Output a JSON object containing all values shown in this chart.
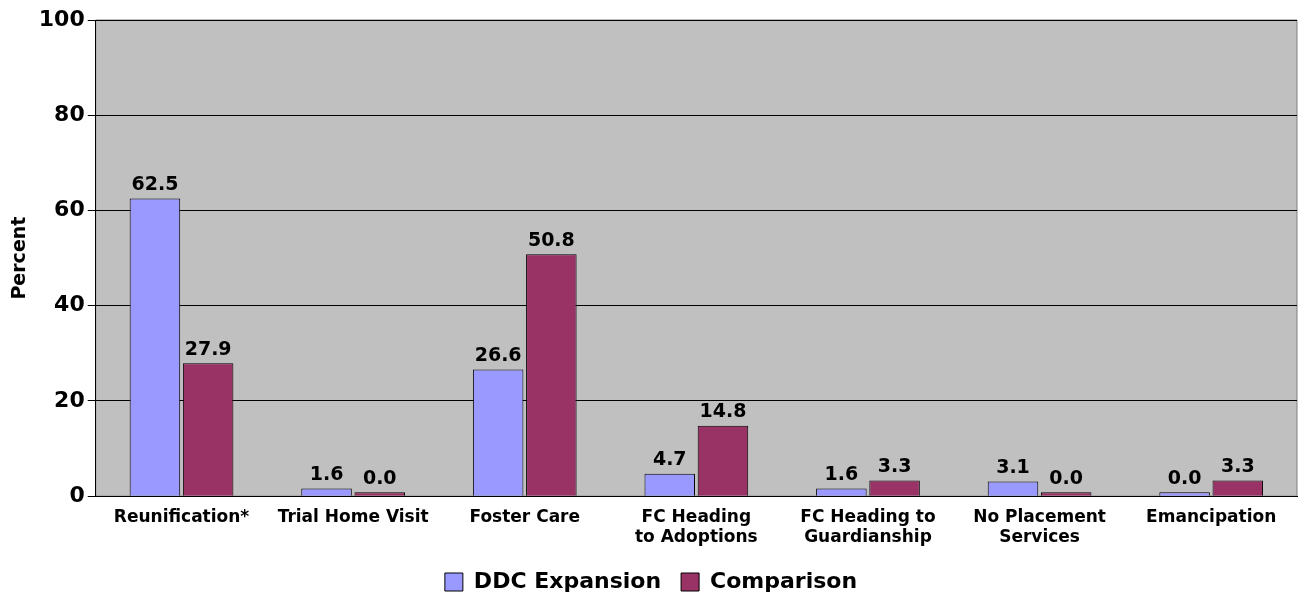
{
  "chart_data": {
    "type": "bar",
    "ylabel": "Percent",
    "categories": [
      "Reunification*",
      "Trial Home Visit",
      "Foster Care",
      "FC Heading to Adoptions",
      "FC Heading to Guardianship",
      "No Placement Services",
      "Emancipation"
    ],
    "series": [
      {
        "name": "DDC Expansion",
        "color": "#9999ff",
        "values": [
          62.5,
          1.6,
          26.6,
          4.7,
          1.6,
          3.1,
          0
        ],
        "value_labels": [
          "62.5",
          "1.6",
          "26.6",
          "4.7",
          "1.6",
          "3.1",
          "0.0"
        ]
      },
      {
        "name": "Comparison",
        "color": "#993366",
        "values": [
          27.9,
          0,
          50.8,
          14.8,
          3.3,
          0,
          3.3
        ],
        "value_labels": [
          "27.9",
          "0.0",
          "50.8",
          "14.8",
          "3.3",
          "0.0",
          "3.3"
        ]
      }
    ],
    "ylim": [
      0,
      100
    ],
    "yticks": [
      0,
      20,
      40,
      60,
      80,
      100
    ],
    "grid": "y",
    "legend": "bottom"
  }
}
